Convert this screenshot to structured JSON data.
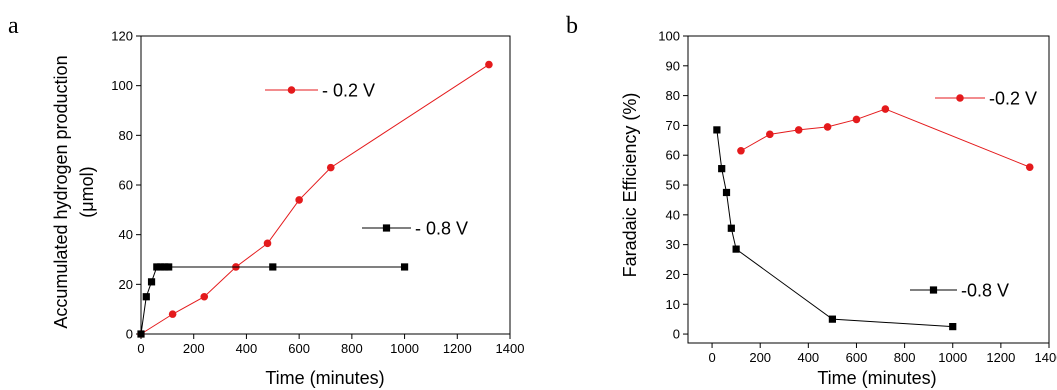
{
  "chart_data": [
    {
      "panel_label": "a",
      "type": "line",
      "xlabel": "Time (minutes)",
      "ylabel": [
        "Accumulated hydrogen production",
        "(μmol)"
      ],
      "xlim": [
        0,
        1400
      ],
      "ylim": [
        0,
        120
      ],
      "xticks": [
        0,
        200,
        400,
        600,
        800,
        1000,
        1200,
        1400
      ],
      "yticks": [
        0,
        20,
        40,
        60,
        80,
        100,
        120
      ],
      "grid": false,
      "legend_placement": "per-series, right side",
      "series": [
        {
          "name": "- 0.2 V",
          "color": "#e41a1c",
          "marker": "circle",
          "points": [
            [
              0,
              0
            ],
            [
              120,
              8
            ],
            [
              240,
              15
            ],
            [
              360,
              27
            ],
            [
              480,
              36.5
            ],
            [
              600,
              54
            ],
            [
              720,
              67
            ],
            [
              1320,
              108.5
            ]
          ]
        },
        {
          "name": "- 0.8 V",
          "color": "#000000",
          "marker": "square",
          "points": [
            [
              0,
              0
            ],
            [
              20,
              15
            ],
            [
              40,
              21
            ],
            [
              60,
              27
            ],
            [
              75,
              27
            ],
            [
              90,
              27
            ],
            [
              105,
              27
            ],
            [
              500,
              27
            ],
            [
              1000,
              27
            ]
          ]
        }
      ]
    },
    {
      "panel_label": "b",
      "type": "line",
      "xlabel": "Time (minutes)",
      "ylabel": [
        "Faradaic Efficiency (%)"
      ],
      "xlim": [
        -100,
        1400
      ],
      "ylim": [
        -3,
        100
      ],
      "xticks": [
        0,
        200,
        400,
        600,
        800,
        1000,
        1200,
        1400
      ],
      "yticks": [
        0,
        10,
        20,
        30,
        40,
        50,
        60,
        70,
        80,
        90,
        100
      ],
      "grid": false,
      "legend_placement": "per-series, right side",
      "series": [
        {
          "name": "-0.2 V",
          "color": "#e41a1c",
          "marker": "circle",
          "points": [
            [
              120,
              61.5
            ],
            [
              240,
              67
            ],
            [
              360,
              68.5
            ],
            [
              480,
              69.5
            ],
            [
              600,
              72
            ],
            [
              720,
              75.5
            ],
            [
              1320,
              56
            ]
          ]
        },
        {
          "name": "-0.8 V",
          "color": "#000000",
          "marker": "square",
          "points": [
            [
              20,
              68.5
            ],
            [
              40,
              55.5
            ],
            [
              60,
              47.5
            ],
            [
              80,
              35.5
            ],
            [
              100,
              28.5
            ],
            [
              500,
              5
            ],
            [
              1000,
              2.5
            ]
          ]
        }
      ]
    }
  ]
}
